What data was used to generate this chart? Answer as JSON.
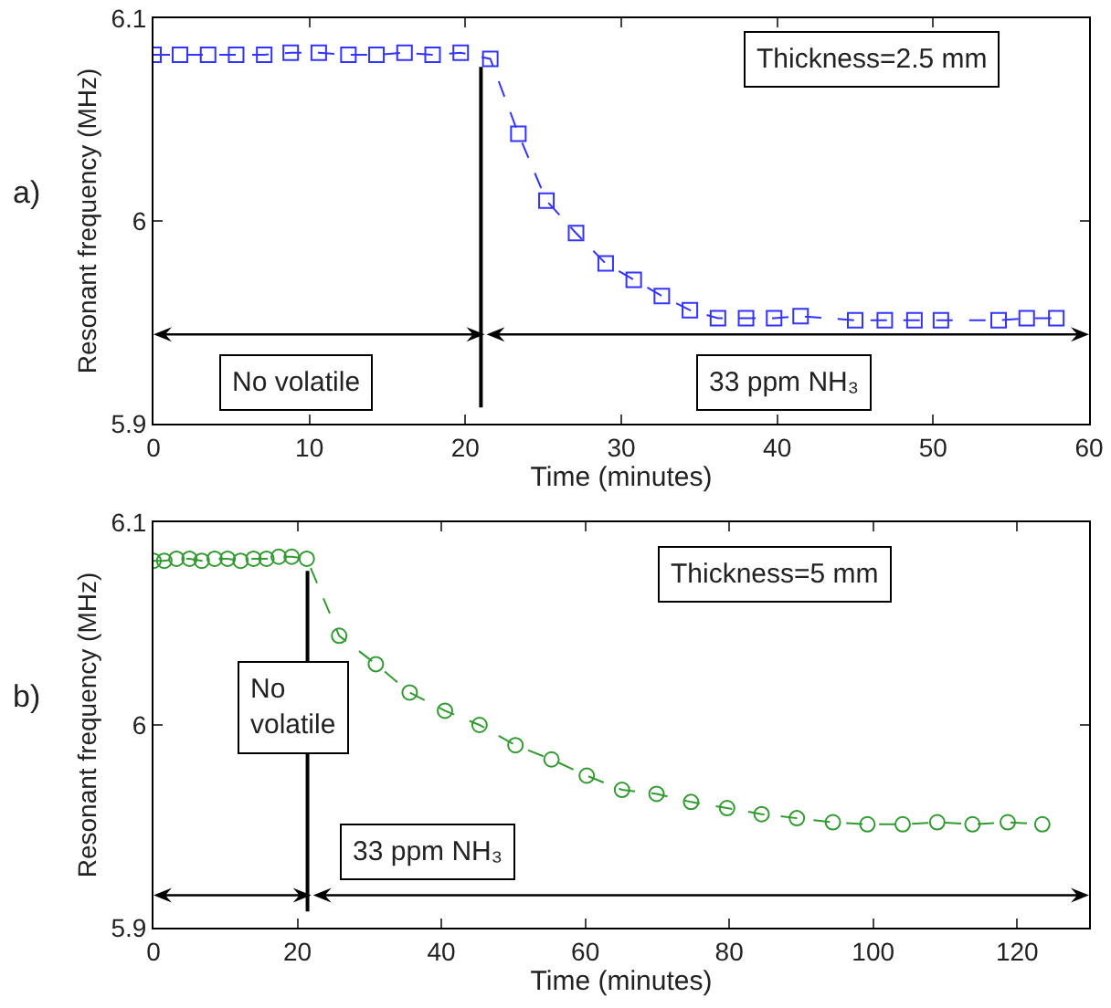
{
  "chart_data": [
    {
      "type": "line",
      "xlabel": "Time (minutes)",
      "ylabel": "Resonant frequency (MHz)",
      "xlim": [
        0,
        60
      ],
      "xticks": [
        0,
        10,
        20,
        30,
        40,
        50,
        60
      ],
      "ylim": [
        5.9,
        6.1
      ],
      "yticks": [
        5.9,
        6,
        6.1
      ],
      "grid": false,
      "marker": "square",
      "line_style": "dashed",
      "annotations": [
        "a)",
        "Thickness=2.5 mm",
        "No volatile",
        "33 ppm NH₃"
      ],
      "ref_lines": [
        {
          "axis": "x",
          "value": 21,
          "color": "#000000"
        }
      ],
      "series": [
        {
          "color": "#3333ff",
          "x": [
            0,
            1.7,
            3.5,
            5.3,
            7.1,
            8.8,
            10.6,
            12.5,
            14.3,
            16.1,
            17.9,
            19.7,
            21.6,
            23.4,
            25.2,
            27.1,
            29.0,
            30.8,
            32.6,
            34.4,
            36.2,
            38.0,
            39.8,
            41.5,
            45.0,
            46.9,
            48.8,
            50.5,
            54.2,
            56.0,
            57.9
          ],
          "values": [
            6.082,
            6.082,
            6.082,
            6.082,
            6.082,
            6.083,
            6.083,
            6.082,
            6.082,
            6.083,
            6.082,
            6.083,
            6.08,
            6.043,
            6.01,
            5.994,
            5.979,
            5.971,
            5.963,
            5.956,
            5.952,
            5.952,
            5.952,
            5.953,
            5.951,
            5.951,
            5.951,
            5.951,
            5.951,
            5.952,
            5.952
          ]
        }
      ]
    },
    {
      "type": "line",
      "xlabel": "Time (minutes)",
      "ylabel": "Resonant frequency (MHz)",
      "xlim": [
        0,
        130
      ],
      "xticks": [
        0,
        20,
        40,
        60,
        80,
        100,
        120
      ],
      "ylim": [
        5.9,
        6.1
      ],
      "yticks": [
        5.9,
        6,
        6.1
      ],
      "grid": false,
      "marker": "circle",
      "line_style": "dashed",
      "annotations": [
        "b)",
        "Thickness=5 mm",
        "No volatile",
        "33 ppm NH₃"
      ],
      "ref_lines": [
        {
          "axis": "x",
          "value": 21.4,
          "color": "#000000"
        }
      ],
      "series": [
        {
          "color": "#339933",
          "x": [
            0,
            1.5,
            3.2,
            5.0,
            6.7,
            8.5,
            10.3,
            12.1,
            13.9,
            15.7,
            17.4,
            19.2,
            21.3,
            25.8,
            30.9,
            35.6,
            40.5,
            45.3,
            50.3,
            55.3,
            60.2,
            65.1,
            69.9,
            74.7,
            79.7,
            84.5,
            89.4,
            94.4,
            99.2,
            104.1,
            108.9,
            113.8,
            118.7,
            123.5
          ],
          "values": [
            6.081,
            6.081,
            6.082,
            6.082,
            6.081,
            6.082,
            6.082,
            6.081,
            6.082,
            6.082,
            6.083,
            6.083,
            6.082,
            6.044,
            6.03,
            6.016,
            6.007,
            6.0,
            5.99,
            5.983,
            5.975,
            5.968,
            5.966,
            5.962,
            5.959,
            5.956,
            5.954,
            5.952,
            5.951,
            5.951,
            5.952,
            5.951,
            5.952,
            5.951
          ]
        }
      ]
    }
  ]
}
